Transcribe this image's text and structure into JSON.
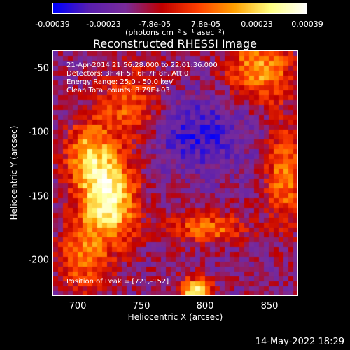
{
  "chart_data": {
    "type": "heatmap",
    "title": "Reconstructed RHESSI Image",
    "xlabel": "Heliocentric X (arcsec)",
    "ylabel": "Heliocentric Y (arcsec)",
    "xlim": [
      680,
      872
    ],
    "ylim": [
      -230,
      -37
    ],
    "x_ticks": [
      "700",
      "750",
      "800",
      "850"
    ],
    "x_tick_values": [
      700,
      750,
      800,
      850
    ],
    "y_ticks": [
      "-50",
      "-100",
      "-150",
      "-200"
    ],
    "y_tick_values": [
      -50,
      -100,
      -150,
      -200
    ],
    "colorbar": {
      "ticks": [
        "-0.00039",
        "-0.00023",
        "-7.8e-05",
        "7.8e-05",
        "0.00023",
        "0.00039"
      ],
      "units": "(photons cm⁻² s⁻¹ asec⁻²)",
      "range": [
        -0.00039,
        0.00039
      ]
    },
    "annotations": [
      "21-Apr-2014 21:56:28.000 to 22:01:36.000",
      "Detectors: 3F 4F 5F 6F 7F 8F, Att 0",
      "Energy Range: 25.0 - 50.0 keV",
      "Clean     Total counts: 8.79E+03"
    ],
    "peak_label": "Position of Peak = [721,-152]",
    "peak": [
      721,
      -152
    ],
    "grid": false,
    "colormap_colors": [
      "#0000ff",
      "#5a1fb0",
      "#7a2c9a",
      "#c00000",
      "#ff4000",
      "#ffa000",
      "#ffff80",
      "#ffffff"
    ]
  },
  "footer": {
    "date": "14-May-2022 18:29"
  }
}
